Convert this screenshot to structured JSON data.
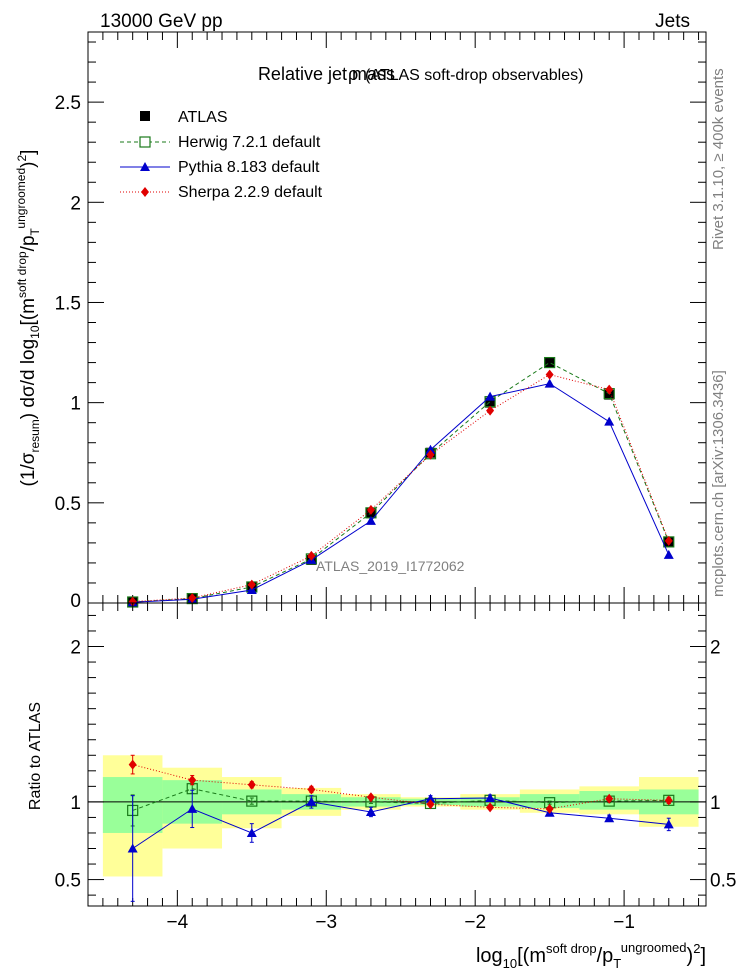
{
  "header": {
    "left": "13000 GeV pp",
    "right": "Jets"
  },
  "side_labels": {
    "rivet": "Rivet 3.1.10, ≥ 400k events",
    "mcplots": "mcplots.cern.ch [arXiv:1306.3436]"
  },
  "chart_data": [
    {
      "type": "line",
      "panel": "main",
      "title": "Relative jet mass",
      "title_symbol": "ρ",
      "subtitle": "(ATLAS soft-drop observables)",
      "analysis_label": "ATLAS_2019_I1772062",
      "ylabel": "(1/σresum) dσ/d log10[(m soft drop/pT ungroomed)2]",
      "ylabel_parts": {
        "a": "(1/σ",
        "b": "resum",
        "c": ") dσ/d log",
        "d": "10",
        "e": "[(m",
        "f": "soft drop",
        "g": "/p",
        "h": "T",
        "i": "ungroomed",
        "j": ")",
        "k": "2",
        "l": "]"
      },
      "xlim": [
        -4.6,
        -0.45
      ],
      "ylim": [
        0,
        2.85
      ],
      "yticks": [
        0.5,
        1,
        1.5,
        2,
        2.5
      ],
      "ytick_labels": [
        "0.5",
        "1",
        "1.5",
        "2",
        "2.5"
      ],
      "y_bottom_label": "0",
      "x": [
        -4.3,
        -3.9,
        -3.5,
        -3.1,
        -2.7,
        -2.3,
        -1.9,
        -1.5,
        -1.1,
        -0.7
      ],
      "series": [
        {
          "name": "ATLAS",
          "color": "#000000",
          "marker": "square-filled",
          "values": [
            0.005,
            0.02,
            0.08,
            0.215,
            0.45,
            0.75,
            1.0,
            1.2,
            1.04,
            0.305
          ]
        },
        {
          "name": "Herwig 7.2.1 default",
          "color": "#1a7a1a",
          "marker": "square-open",
          "line": "dashed",
          "values": [
            0.005,
            0.022,
            0.08,
            0.22,
            0.45,
            0.745,
            1.005,
            1.2,
            1.045,
            0.305
          ]
        },
        {
          "name": "Pythia 8.183 default",
          "color": "#0000cc",
          "marker": "triangle",
          "line": "solid",
          "values": [
            0.004,
            0.019,
            0.065,
            0.215,
            0.41,
            0.765,
            1.03,
            1.095,
            0.905,
            0.24
          ]
        },
        {
          "name": "Sherpa 2.2.9 default",
          "color": "#e00000",
          "marker": "diamond",
          "line": "dotted",
          "values": [
            0.007,
            0.025,
            0.092,
            0.235,
            0.465,
            0.74,
            0.96,
            1.14,
            1.065,
            0.31
          ]
        }
      ]
    },
    {
      "type": "line",
      "panel": "ratio",
      "ylabel": "Ratio to ATLAS",
      "xlabel": "log10[(m soft drop/pT ungroomed)2]",
      "xlabel_parts": {
        "a": "log",
        "b": "10",
        "c": "[(m",
        "d": "soft drop",
        "e": "/p",
        "f": "T",
        "g": "ungroomed",
        "h": ")",
        "i": "2",
        "j": "]"
      },
      "xlim": [
        -4.6,
        -0.45
      ],
      "ylim": [
        0.33,
        2.28
      ],
      "xticks": [
        -4,
        -3,
        -2,
        -1
      ],
      "xtick_labels": [
        "−4",
        "−3",
        "−2",
        "−1"
      ],
      "yticks": [
        0.5,
        1,
        2
      ],
      "ytick_labels": [
        "0.5",
        "1",
        "2"
      ],
      "bins": [
        [
          -4.5,
          -4.1
        ],
        [
          -4.1,
          -3.7
        ],
        [
          -3.7,
          -3.3
        ],
        [
          -3.3,
          -2.9
        ],
        [
          -2.9,
          -2.5
        ],
        [
          -2.5,
          -2.1
        ],
        [
          -2.1,
          -1.7
        ],
        [
          -1.7,
          -1.3
        ],
        [
          -1.3,
          -0.9
        ],
        [
          -0.9,
          -0.5
        ]
      ],
      "band_colors": {
        "stat": "#99ff99",
        "total": "#ffff99"
      },
      "band_stat": [
        [
          0.8,
          1.16
        ],
        [
          0.86,
          1.14
        ],
        [
          0.92,
          1.08
        ],
        [
          0.95,
          1.05
        ],
        [
          0.97,
          1.03
        ],
        [
          0.98,
          1.02
        ],
        [
          0.97,
          1.03
        ],
        [
          0.96,
          1.05
        ],
        [
          0.95,
          1.07
        ],
        [
          0.92,
          1.08
        ]
      ],
      "band_total": [
        [
          0.52,
          1.3
        ],
        [
          0.7,
          1.22
        ],
        [
          0.83,
          1.16
        ],
        [
          0.91,
          1.09
        ],
        [
          0.95,
          1.05
        ],
        [
          0.97,
          1.03
        ],
        [
          0.95,
          1.05
        ],
        [
          0.93,
          1.08
        ],
        [
          0.92,
          1.1
        ],
        [
          0.84,
          1.16
        ]
      ],
      "x": [
        -4.3,
        -3.9,
        -3.5,
        -3.1,
        -2.7,
        -2.3,
        -1.9,
        -1.5,
        -1.1,
        -0.7
      ],
      "series": [
        {
          "name": "Herwig 7.2.1 default",
          "color": "#1a7a1a",
          "marker": "square-open",
          "line": "dashed",
          "values": [
            0.945,
            1.085,
            1.005,
            1.005,
            1.0,
            0.99,
            1.01,
            0.995,
            1.005,
            1.01
          ],
          "err": [
            0.1,
            0.03,
            0.02,
            0.02,
            0.01,
            0.01,
            0.01,
            0.01,
            0.01,
            0.02
          ]
        },
        {
          "name": "Pythia 8.183 default",
          "color": "#0000cc",
          "marker": "triangle",
          "line": "solid",
          "values": [
            0.7,
            0.955,
            0.8,
            1.0,
            0.935,
            1.02,
            1.025,
            0.93,
            0.895,
            0.855
          ],
          "err": [
            0.34,
            0.12,
            0.06,
            0.04,
            0.03,
            0.02,
            0.02,
            0.01,
            0.02,
            0.04
          ]
        },
        {
          "name": "Sherpa 2.2.9 default",
          "color": "#e00000",
          "marker": "diamond",
          "line": "dotted",
          "values": [
            1.24,
            1.14,
            1.11,
            1.08,
            1.03,
            0.985,
            0.965,
            0.955,
            1.02,
            1.01
          ],
          "err": [
            0.06,
            0.03,
            0.02,
            0.02,
            0.01,
            0.01,
            0.01,
            0.01,
            0.01,
            0.02
          ]
        }
      ]
    }
  ]
}
